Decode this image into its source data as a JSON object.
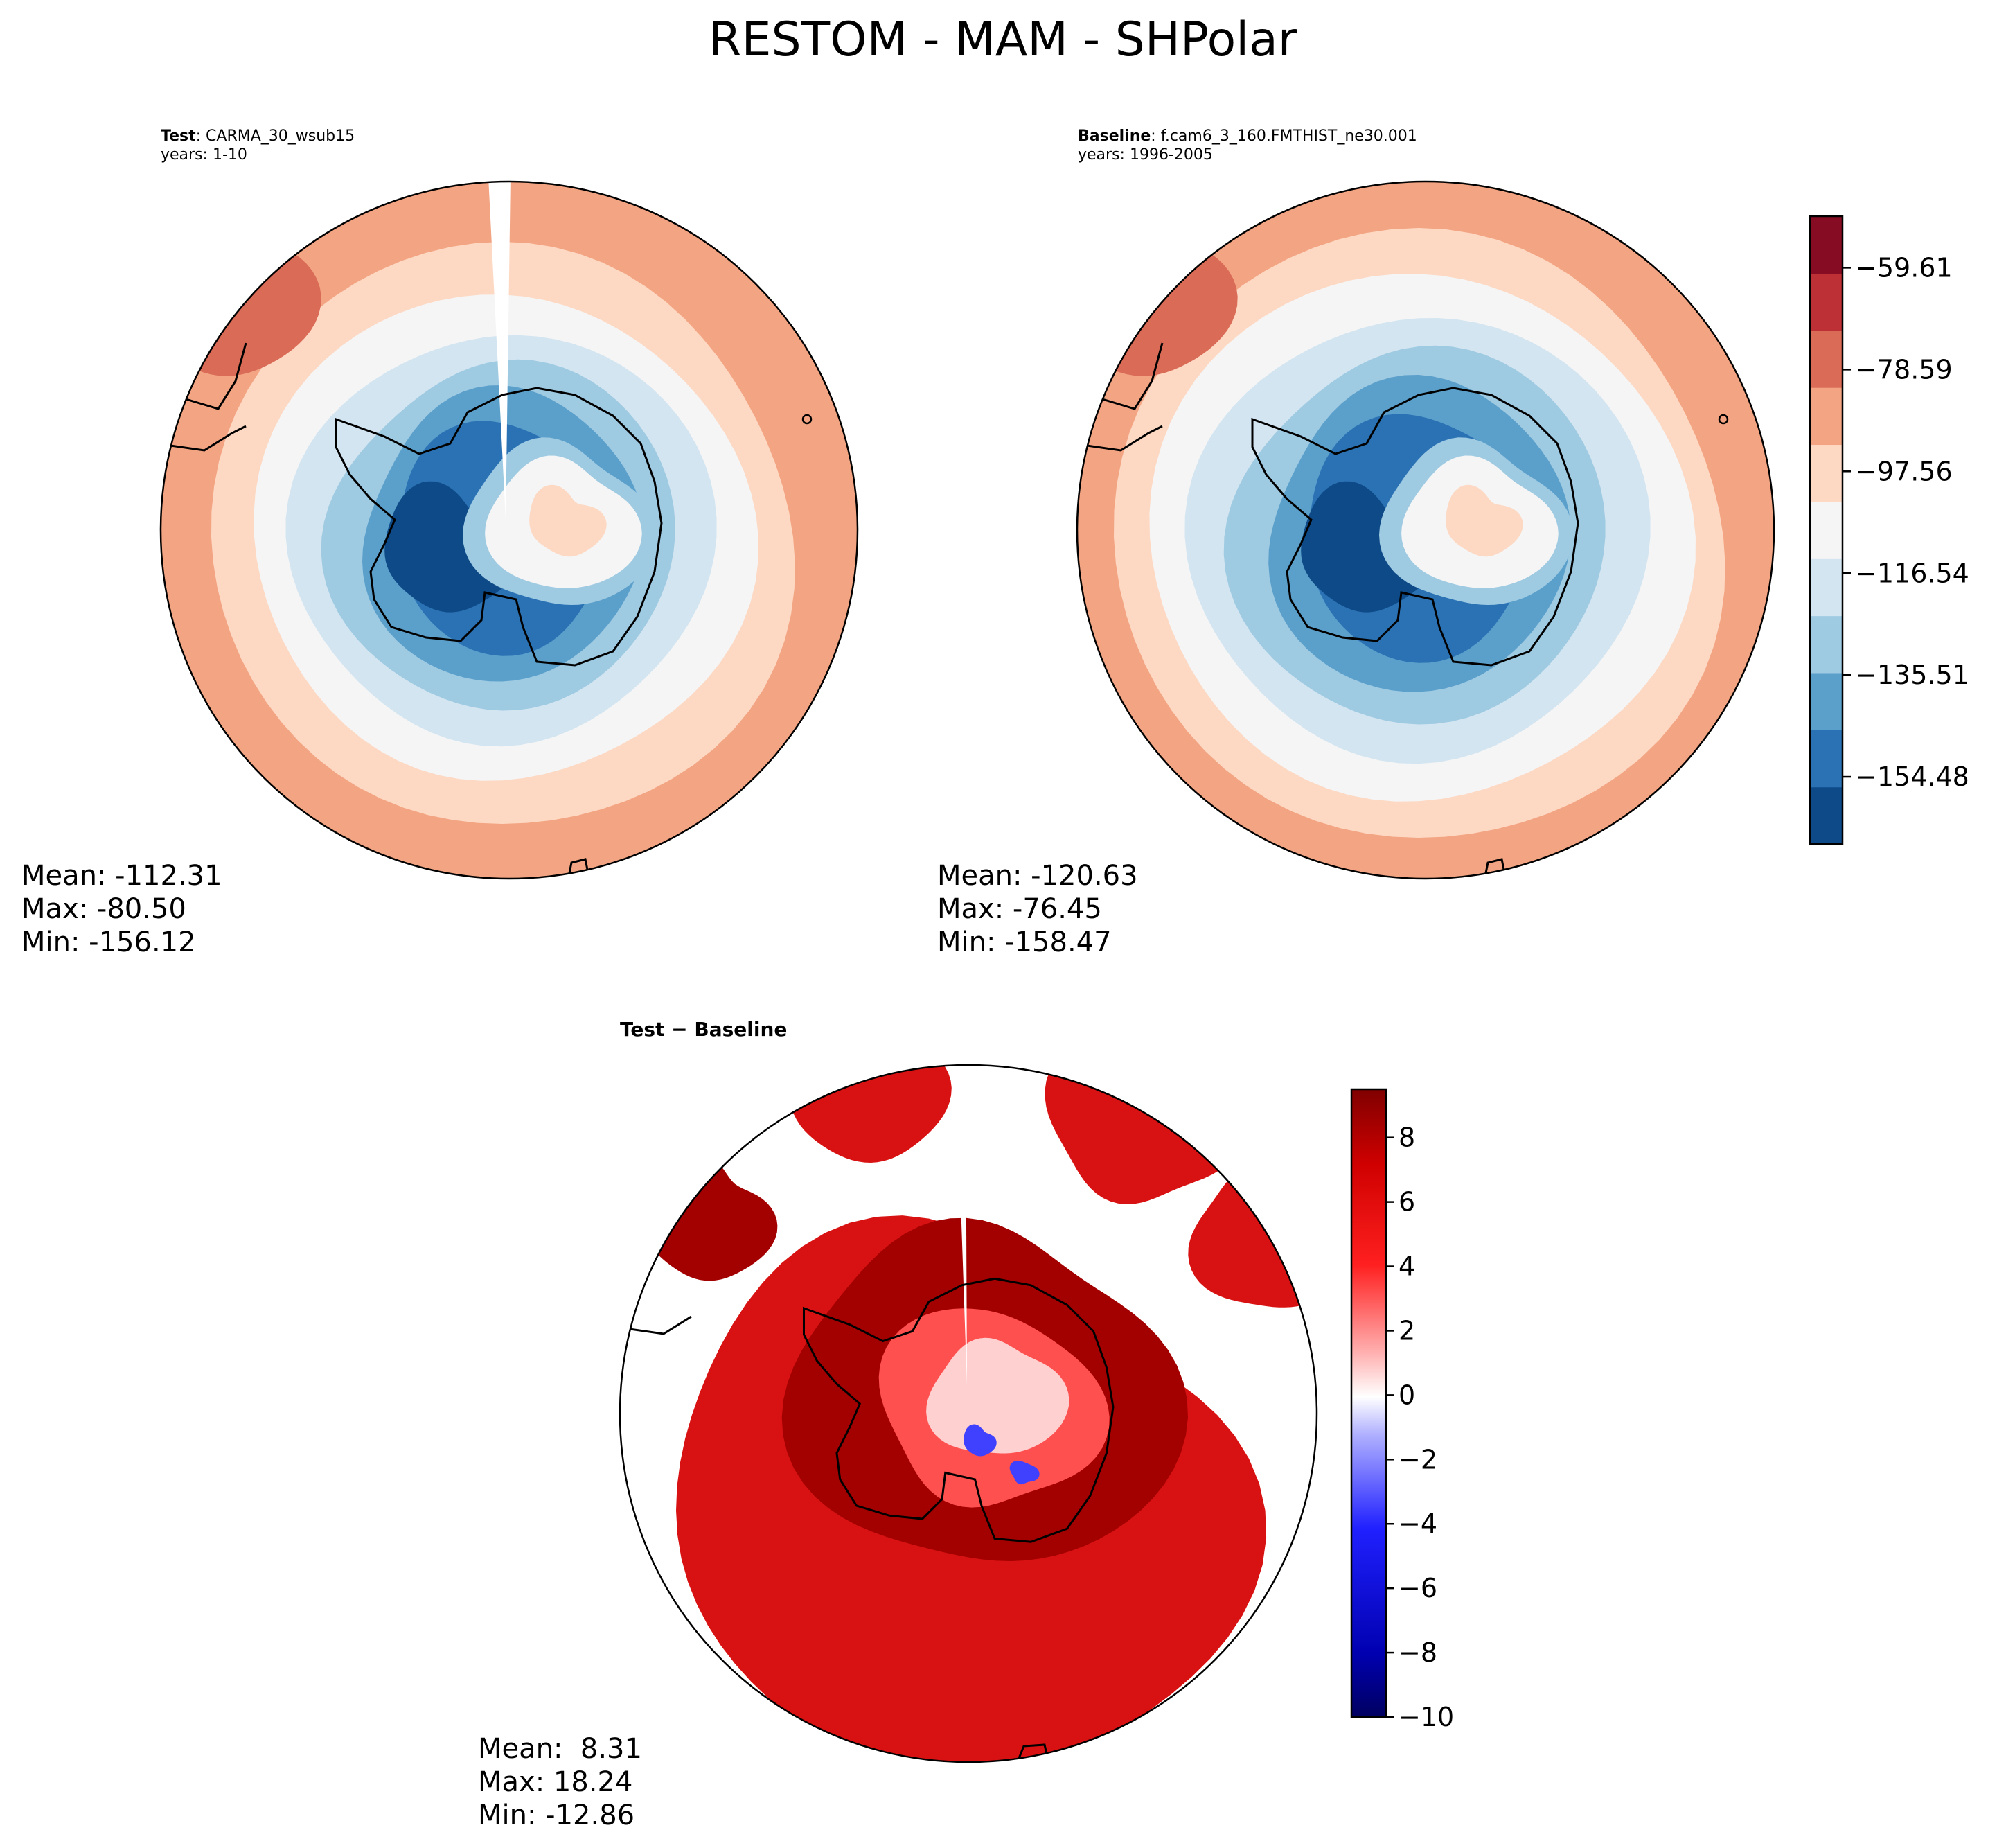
{
  "title": "RESTOM - MAM - SHPolar",
  "panels": {
    "test": {
      "label_bold": "Test",
      "label_rest": ": CARMA_30_wsub15",
      "years": "years: 1-10",
      "stats": {
        "mean": "Mean: -112.31",
        "max": "Max: -80.50",
        "min": "Min: -156.12"
      }
    },
    "baseline": {
      "label_bold": "Baseline",
      "label_rest": ": f.cam6_3_160.FMTHIST_ne30.001",
      "years": "years: 1996-2005",
      "stats": {
        "mean": "Mean: -120.63",
        "max": "Max: -76.45",
        "min": "Min: -158.47"
      }
    },
    "diff": {
      "label": "Test − Baseline",
      "stats": {
        "mean": "Mean:  8.31",
        "max": "Max: 18.24",
        "min": "Min: -12.86"
      }
    }
  },
  "colors": {
    "abs_levels": [
      "#0d4a87",
      "#2b72b4",
      "#5b9fcb",
      "#9ecae2",
      "#d3e5f1",
      "#f5f5f5",
      "#fdd9c4",
      "#f3a583",
      "#d96b57",
      "#bd3035",
      "#860c23"
    ],
    "coast": "#000000",
    "diff_red": "#d81212",
    "diff_darkred": "#a30000",
    "diff_blue": "#4040ff"
  },
  "chart_data": [
    {
      "type": "heatmap",
      "name": "test",
      "projection": "south-polar-stereographic",
      "colorbar": "shared-abs",
      "stats": {
        "mean": -112.31,
        "max": -80.5,
        "min": -156.12
      }
    },
    {
      "type": "heatmap",
      "name": "baseline",
      "projection": "south-polar-stereographic",
      "colorbar": "shared-abs",
      "stats": {
        "mean": -120.63,
        "max": -76.45,
        "min": -158.47
      }
    },
    {
      "type": "heatmap",
      "name": "test-minus-baseline",
      "projection": "south-polar-stereographic",
      "colorbar": "diff",
      "stats": {
        "mean": 8.31,
        "max": 18.24,
        "min": -12.86
      }
    }
  ],
  "colorbar_abs": {
    "range": [
      -167.0,
      -50.0
    ],
    "ticks": [
      -59.61,
      -78.59,
      -97.56,
      -116.54,
      -135.51,
      -154.48
    ],
    "tick_labels": [
      "−59.61",
      "−78.59",
      "−97.56",
      "−116.54",
      "−135.51",
      "−154.48"
    ]
  },
  "colorbar_diff": {
    "range": [
      -10,
      9.5
    ],
    "ticks": [
      8,
      6,
      4,
      2,
      0,
      -2,
      -4,
      -6,
      -8,
      -10
    ],
    "tick_labels": [
      "8",
      "6",
      "4",
      "2",
      "0",
      "−2",
      "−4",
      "−6",
      "−8",
      "−10"
    ]
  }
}
